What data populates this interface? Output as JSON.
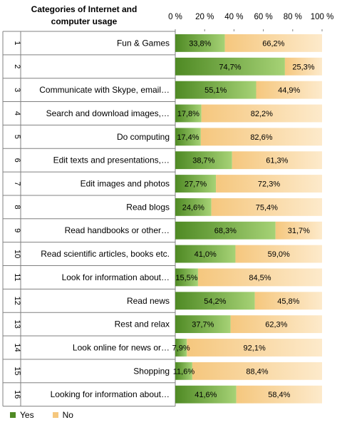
{
  "chart_data": {
    "type": "bar",
    "stacked": "percent",
    "orientation": "horizontal",
    "header": [
      "Categories of Internet and",
      "computer usage"
    ],
    "xlim": [
      0,
      100
    ],
    "x_ticks": [
      "0 %",
      "20 %",
      "40 %",
      "60 %",
      "80 %",
      "100 %"
    ],
    "row_numbers": [
      "1",
      "2",
      "3",
      "4",
      "5",
      "6",
      "7",
      "8",
      "9",
      "10",
      "11",
      "12",
      "13",
      "14",
      "15",
      "16"
    ],
    "categories": [
      "Fun & Games",
      "",
      "Communicate with Skype, email…",
      "Search and download images,…",
      "Do computing",
      "Edit texts and presentations,…",
      "Edit images and photos",
      "Read blogs",
      "Read handbooks or other…",
      "Read scientific articles, books etc.",
      "Look for information about…",
      "Read news",
      "Rest and relax",
      "Look online for news or…",
      "Shopping",
      "Looking for information about…"
    ],
    "series": [
      {
        "name": "Yes",
        "values": [
          33.8,
          74.7,
          55.1,
          17.8,
          17.4,
          38.7,
          27.7,
          24.6,
          68.3,
          41.0,
          15.5,
          54.2,
          37.7,
          7.9,
          11.6,
          41.6
        ],
        "labels": [
          "33,8%",
          "74,7%",
          "55,1%",
          "17,8%",
          "17,4%",
          "38,7%",
          "27,7%",
          "24,6%",
          "68,3%",
          "41,0%",
          "15,5%",
          "54,2%",
          "37,7%",
          "7,9%",
          "11,6%",
          "41,6%"
        ]
      },
      {
        "name": "No",
        "values": [
          66.2,
          25.3,
          44.9,
          82.2,
          82.6,
          61.3,
          72.3,
          75.4,
          31.7,
          59.0,
          84.5,
          45.8,
          62.3,
          92.1,
          88.4,
          58.4
        ],
        "labels": [
          "66,2%",
          "25,3%",
          "44,9%",
          "82,2%",
          "82,6%",
          "61,3%",
          "72,3%",
          "75,4%",
          "31,7%",
          "59,0%",
          "84,5%",
          "45,8%",
          "62,3%",
          "92,1%",
          "88,4%",
          "58,4%"
        ]
      }
    ],
    "colors": {
      "yes_dark": "#4f8a24",
      "yes_light": "#a6d276",
      "no_dark": "#f5c77e",
      "no_light": "#fdeacb",
      "grid": "#808080"
    },
    "legend_position": "bottom-left"
  }
}
